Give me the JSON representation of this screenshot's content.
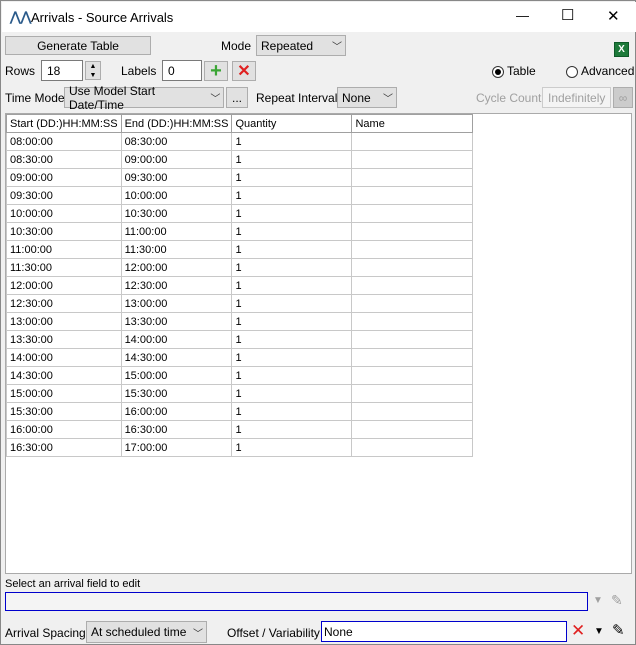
{
  "window": {
    "title": "Arrivals - Source Arrivals",
    "minimize": "—",
    "maximize": "☐",
    "close": "✕"
  },
  "toolbar": {
    "generate_label": "Generate Table",
    "mode_label": "Mode",
    "mode_value": "Repeated",
    "rows_label": "Rows",
    "rows_value": "18",
    "labels_label": "Labels",
    "labels_value": "0",
    "view_table": "Table",
    "view_advanced": "Advanced",
    "view_selected": "Table",
    "time_mode_label": "Time Mode",
    "time_mode_value": "Use Model Start Date/Time",
    "more_button": "...",
    "repeat_interval_label": "Repeat Interval",
    "repeat_interval_value": "None",
    "cycle_count_label": "Cycle Count",
    "cycle_count_value": "Indefinitely",
    "infinity_button": "∞"
  },
  "table": {
    "columns": [
      "Start (DD:)HH:MM:SS",
      "End (DD:)HH:MM:SS",
      "Quantity",
      "Name"
    ],
    "rows": [
      [
        "08:00:00",
        "08:30:00",
        "1",
        ""
      ],
      [
        "08:30:00",
        "09:00:00",
        "1",
        ""
      ],
      [
        "09:00:00",
        "09:30:00",
        "1",
        ""
      ],
      [
        "09:30:00",
        "10:00:00",
        "1",
        ""
      ],
      [
        "10:00:00",
        "10:30:00",
        "1",
        ""
      ],
      [
        "10:30:00",
        "11:00:00",
        "1",
        ""
      ],
      [
        "11:00:00",
        "11:30:00",
        "1",
        ""
      ],
      [
        "11:30:00",
        "12:00:00",
        "1",
        ""
      ],
      [
        "12:00:00",
        "12:30:00",
        "1",
        ""
      ],
      [
        "12:30:00",
        "13:00:00",
        "1",
        ""
      ],
      [
        "13:00:00",
        "13:30:00",
        "1",
        ""
      ],
      [
        "13:30:00",
        "14:00:00",
        "1",
        ""
      ],
      [
        "14:00:00",
        "14:30:00",
        "1",
        ""
      ],
      [
        "14:30:00",
        "15:00:00",
        "1",
        ""
      ],
      [
        "15:00:00",
        "15:30:00",
        "1",
        ""
      ],
      [
        "15:30:00",
        "16:00:00",
        "1",
        ""
      ],
      [
        "16:00:00",
        "16:30:00",
        "1",
        ""
      ],
      [
        "16:30:00",
        "17:00:00",
        "1",
        ""
      ]
    ]
  },
  "editor": {
    "label": "Select an arrival field to edit",
    "value": ""
  },
  "bottom": {
    "spacing_label": "Arrival Spacing",
    "spacing_value": "At scheduled time",
    "offset_label": "Offset / Variability",
    "offset_value": "None"
  },
  "colors": {
    "accent": "#0000cc",
    "delete": "#e02020",
    "add": "#3aa534",
    "excel": "#1d7a3a"
  }
}
